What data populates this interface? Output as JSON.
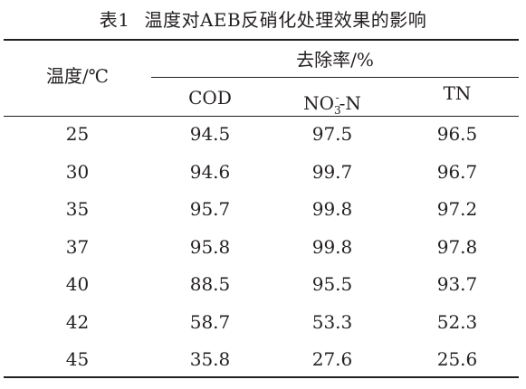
{
  "caption": {
    "number": "表1",
    "title": "温度对AEB反硝化处理效果的影响"
  },
  "header": {
    "row_label": "温度/℃",
    "group_label": "去除率/%",
    "columns": {
      "cod": "COD",
      "no3_base": "NO",
      "no3_sub": "3",
      "no3_sup": "-",
      "no3_tail": "-N",
      "tn": "TN"
    }
  },
  "rows": [
    {
      "temp": "25",
      "cod": "94.5",
      "no3": "97.5",
      "tn": "96.5"
    },
    {
      "temp": "30",
      "cod": "94.6",
      "no3": "99.7",
      "tn": "96.7"
    },
    {
      "temp": "35",
      "cod": "95.7",
      "no3": "99.8",
      "tn": "97.2"
    },
    {
      "temp": "37",
      "cod": "95.8",
      "no3": "99.8",
      "tn": "97.8"
    },
    {
      "temp": "40",
      "cod": "88.5",
      "no3": "95.5",
      "tn": "93.7"
    },
    {
      "temp": "42",
      "cod": "58.7",
      "no3": "53.3",
      "tn": "52.3"
    },
    {
      "temp": "45",
      "cod": "35.8",
      "no3": "27.6",
      "tn": "25.6"
    }
  ]
}
